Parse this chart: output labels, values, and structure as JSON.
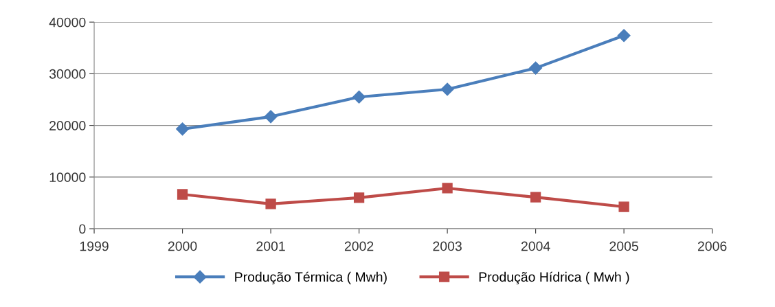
{
  "chart_data": {
    "type": "line",
    "x": [
      2000,
      2001,
      2002,
      2003,
      2004,
      2005
    ],
    "series": [
      {
        "name": "Produção Térmica ( Mwh)",
        "color": "#4a7ebb",
        "marker": "diamond",
        "values": [
          19300,
          21700,
          25500,
          27000,
          31100,
          37400
        ]
      },
      {
        "name": "Produção Hídrica ( Mwh )",
        "color": "#be4b48",
        "marker": "square",
        "values": [
          6650,
          4800,
          6000,
          7850,
          6100,
          4250
        ]
      }
    ],
    "xlim": [
      1999,
      2006
    ],
    "xticks": [
      1999,
      2000,
      2001,
      2002,
      2003,
      2004,
      2005,
      2006
    ],
    "ylim": [
      0,
      40000
    ],
    "yticks": [
      0,
      10000,
      20000,
      30000,
      40000
    ],
    "grid": "y",
    "legend": "bottom",
    "line_style": "solid"
  }
}
